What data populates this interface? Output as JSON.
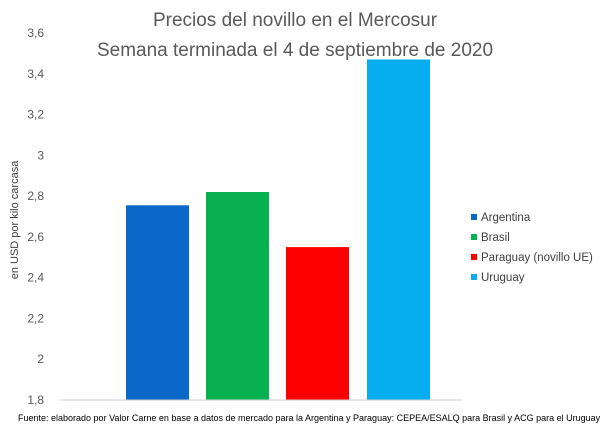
{
  "chart_data": {
    "type": "bar",
    "title": "Precios del novillo en el Mercosur",
    "subtitle": "Semana terminada el 4 de septiembre de 2020",
    "ylabel": "en USD por kilo carcasa",
    "xlabel": "",
    "ylim": [
      1.8,
      3.6
    ],
    "yticks": [
      "3,6",
      "3,4",
      "3,2",
      "3",
      "2,8",
      "2,6",
      "2,4",
      "2,2",
      "2",
      "1,8"
    ],
    "grid": false,
    "legend_position": "right",
    "categories": [
      "Argentina",
      "Brasil",
      "Paraguay (novillo UE)",
      "Uruguay"
    ],
    "values": [
      2.755,
      2.82,
      2.55,
      3.47
    ],
    "colors": [
      "#0a68c9",
      "#07b14f",
      "#fe0000",
      "#06aef0"
    ],
    "source": "Fuente: elaborado por Valor Carne en base a datos de mercado para la Argentina y Paraguay: CEPEA/ESALQ para Brasil y ACG para el Uruguay"
  }
}
